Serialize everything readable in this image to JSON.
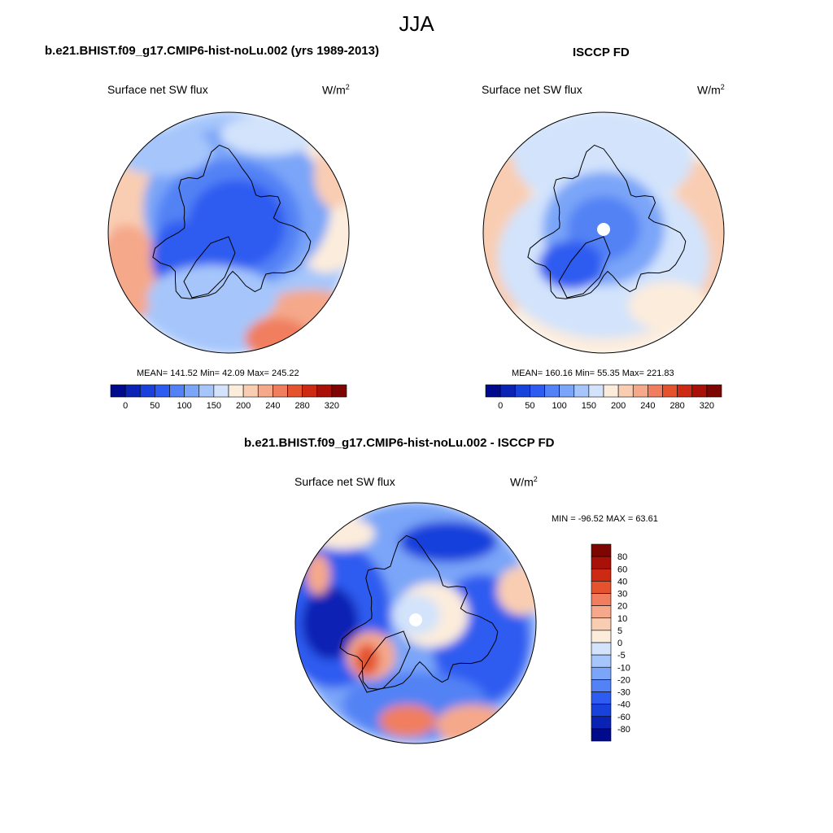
{
  "figure": {
    "title": "JJA"
  },
  "colors": {
    "sequential": [
      "#000a8c",
      "#0a23b4",
      "#1941dc",
      "#2e5cf0",
      "#5282f5",
      "#7aa5f8",
      "#a6c6fb",
      "#d2e3fb",
      "#fcecdc",
      "#f9cdb2",
      "#f5a88a",
      "#f07e5e",
      "#e4532e",
      "#cc2a12",
      "#a81008",
      "#7d0603"
    ],
    "diverging": [
      "#000a8c",
      "#0a23b4",
      "#1941dc",
      "#2e5cf0",
      "#5282f5",
      "#7aa5f8",
      "#a6c6fb",
      "#d2e3fb",
      "#fcecdc",
      "#f9cdb2",
      "#f5a88a",
      "#f07e5e",
      "#e4532e",
      "#cc2a12",
      "#a81008",
      "#7d0603"
    ],
    "missing": "#ffffff",
    "coast": "#000000"
  },
  "chart_data": [
    {
      "type": "heatmap",
      "projection": "north-polar-stereographic",
      "title": "b.e21.BHIST.f09_g17.CMIP6-hist-noLu.002 (yrs 1989-2013)",
      "left_string": "Surface net SW flux",
      "units_base": "W/m",
      "units_exp": "2",
      "stats": {
        "mean": 141.52,
        "min": 42.09,
        "max": 245.22
      },
      "stats_text": "MEAN= 141.52  Min=  42.09  Max= 245.22",
      "levels": [
        0,
        25,
        50,
        75,
        100,
        125,
        150,
        175,
        200,
        220,
        240,
        260,
        280,
        300,
        320
      ],
      "colorbar_tick_labels": [
        "0",
        "50",
        "100",
        "150",
        "200",
        "240",
        "280",
        "320"
      ],
      "colorbar_orientation": "horizontal",
      "has_pole_hole": false
    },
    {
      "type": "heatmap",
      "projection": "north-polar-stereographic",
      "title": "ISCCP FD",
      "left_string": "Surface net SW flux",
      "units_base": "W/m",
      "units_exp": "2",
      "stats": {
        "mean": 160.16,
        "min": 55.35,
        "max": 221.83
      },
      "stats_text": "MEAN= 160.16  Min=  55.35  Max= 221.83",
      "levels": [
        0,
        25,
        50,
        75,
        100,
        125,
        150,
        175,
        200,
        220,
        240,
        260,
        280,
        300,
        320
      ],
      "colorbar_tick_labels": [
        "0",
        "50",
        "100",
        "150",
        "200",
        "240",
        "280",
        "320"
      ],
      "colorbar_orientation": "horizontal",
      "has_pole_hole": true
    },
    {
      "type": "heatmap",
      "projection": "north-polar-stereographic",
      "title": "b.e21.BHIST.f09_g17.CMIP6-hist-noLu.002 - ISCCP FD",
      "left_string": "Surface net SW flux",
      "units_base": "W/m",
      "units_exp": "2",
      "stats": {
        "min": -96.52,
        "max": 63.61
      },
      "stats_text": "MIN = -96.52 MAX =  63.61",
      "levels": [
        -80,
        -60,
        -40,
        -30,
        -20,
        -10,
        -5,
        0,
        5,
        10,
        20,
        30,
        40,
        60,
        80
      ],
      "colorbar_tick_labels": [
        "80",
        "60",
        "40",
        "30",
        "20",
        "10",
        "5",
        "0",
        "-5",
        "-10",
        "-20",
        "-30",
        "-40",
        "-60",
        "-80"
      ],
      "colorbar_orientation": "vertical",
      "has_pole_hole": true
    }
  ]
}
